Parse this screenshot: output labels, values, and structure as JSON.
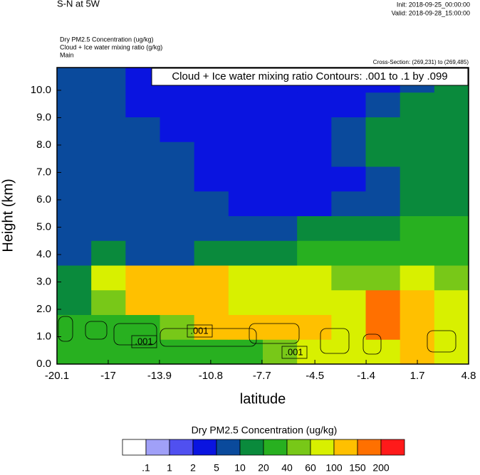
{
  "chart_data": {
    "type": "filled-contour",
    "title": "S-N at 5W",
    "init": "Init: 2018-09-25_00:00:00",
    "valid": "Valid: 2018-09-28_15:00:00",
    "field_name": "Dry PM2.5 Concentration   (ug/kg)",
    "contour_name": "Cloud + Ice water mixing ratio   (g/kg)",
    "domain": "Main",
    "cross_section": "Cross-Section: (269,231) to (269,485)",
    "contour_info": "Cloud + Ice water mixing ratio Contours: .001 to .1 by .099",
    "contour_labels": [
      ".001",
      ".001",
      ".001"
    ],
    "x_label": "latitude",
    "y_label": "Height (km)",
    "xlim": [
      -20.1,
      4.8
    ],
    "ylim": [
      0,
      10.83
    ],
    "xticks": [
      -20.1,
      -17.0,
      -13.9,
      -10.8,
      -7.7,
      -4.5,
      -1.4,
      1.7,
      4.8
    ],
    "yticks": [
      {
        "value": 0,
        "label": "0.0"
      },
      {
        "value": 1,
        "label": "1.0"
      },
      {
        "value": 2,
        "label": "2.0"
      },
      {
        "value": 3,
        "label": "3.0"
      },
      {
        "value": 4,
        "label": "4.0"
      },
      {
        "value": 5,
        "label": "5.0"
      },
      {
        "value": 6,
        "label": "6.0"
      },
      {
        "value": 7,
        "label": "7.0"
      },
      {
        "value": 8,
        "label": "8.0"
      },
      {
        "value": 9,
        "label": "9.0"
      },
      {
        "value": 10,
        "label": "10.0"
      }
    ],
    "field": [
      [
        30,
        30,
        30,
        30,
        30,
        30,
        50,
        80,
        80,
        80,
        120,
        80
      ],
      [
        30,
        30,
        30,
        50,
        120,
        120,
        120,
        120,
        80,
        150,
        120,
        80
      ],
      [
        15,
        50,
        120,
        120,
        120,
        80,
        80,
        70,
        70,
        160,
        120,
        80
      ],
      [
        15,
        70,
        120,
        120,
        120,
        70,
        70,
        70,
        50,
        50,
        70,
        50
      ],
      [
        7,
        15,
        7,
        7,
        15,
        15,
        15,
        30,
        30,
        30,
        30,
        30
      ],
      [
        7,
        7,
        7,
        7,
        7,
        7,
        7,
        15,
        15,
        15,
        30,
        30
      ],
      [
        7,
        7,
        7,
        7,
        7,
        4,
        4,
        4,
        7,
        7,
        15,
        15
      ],
      [
        7,
        7,
        7,
        7,
        4,
        4,
        4,
        4,
        4,
        7,
        15,
        15
      ],
      [
        7,
        7,
        7,
        7,
        4,
        4,
        4,
        4,
        7,
        15,
        15,
        15
      ],
      [
        7,
        7,
        7,
        4,
        4,
        4,
        4,
        4,
        7,
        15,
        15,
        15
      ],
      [
        7,
        7,
        4,
        4,
        4,
        4,
        4,
        4,
        4,
        7,
        15,
        15
      ],
      [
        7,
        7,
        4,
        4,
        4,
        4,
        4,
        4,
        4,
        4,
        7,
        15
      ]
    ],
    "colorbar": {
      "title": "Dry PM2.5 Concentration  (ug/kg)",
      "levels": [
        {
          "value": 0.1,
          "label": ".1"
        },
        1,
        2,
        5,
        10,
        20,
        40,
        60,
        100,
        150,
        200
      ],
      "colors": [
        "#ffffff",
        "#a0a0f8",
        "#5050f0",
        "#0a14e0",
        "#0a4a9c",
        "#0a8a3c",
        "#28b020",
        "#78c818",
        "#d8f000",
        "#ffc000",
        "#ff7000",
        "#ff1a1a"
      ]
    }
  }
}
